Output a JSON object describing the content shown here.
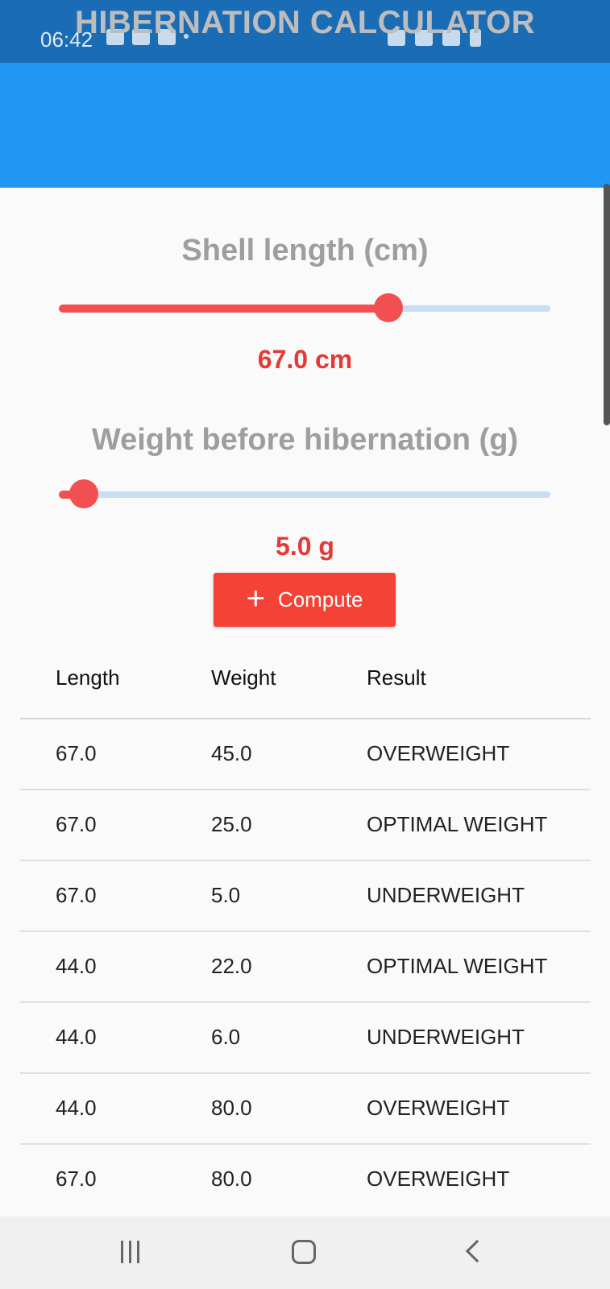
{
  "status": {
    "time": "06:42"
  },
  "app": {
    "title": "HIBERNATION CALCULATOR"
  },
  "colors": {
    "accent": "#f44336",
    "appbar": "#2196f3",
    "statusbar": "#1a6db5",
    "value_text": "#e53935"
  },
  "length_slider": {
    "label": "Shell length (cm)",
    "value_text": "67.0 cm",
    "fraction": 0.67
  },
  "weight_slider": {
    "label": "Weight before hibernation (g)",
    "value_text": "5.0 g",
    "fraction": 0.05
  },
  "compute": {
    "icon": "plus-icon",
    "label": "Compute"
  },
  "table": {
    "headers": [
      "Length",
      "Weight",
      "Result"
    ],
    "rows": [
      [
        "67.0",
        "45.0",
        "OVERWEIGHT"
      ],
      [
        "67.0",
        "25.0",
        "OPTIMAL WEIGHT"
      ],
      [
        "67.0",
        "5.0",
        "UNDERWEIGHT"
      ],
      [
        "44.0",
        "22.0",
        "OPTIMAL WEIGHT"
      ],
      [
        "44.0",
        "6.0",
        "UNDERWEIGHT"
      ],
      [
        "44.0",
        "80.0",
        "OVERWEIGHT"
      ],
      [
        "67.0",
        "80.0",
        "OVERWEIGHT"
      ]
    ]
  },
  "nav": {
    "recent_icon": "recent-apps-icon",
    "home_icon": "home-icon",
    "back_icon": "back-icon"
  }
}
